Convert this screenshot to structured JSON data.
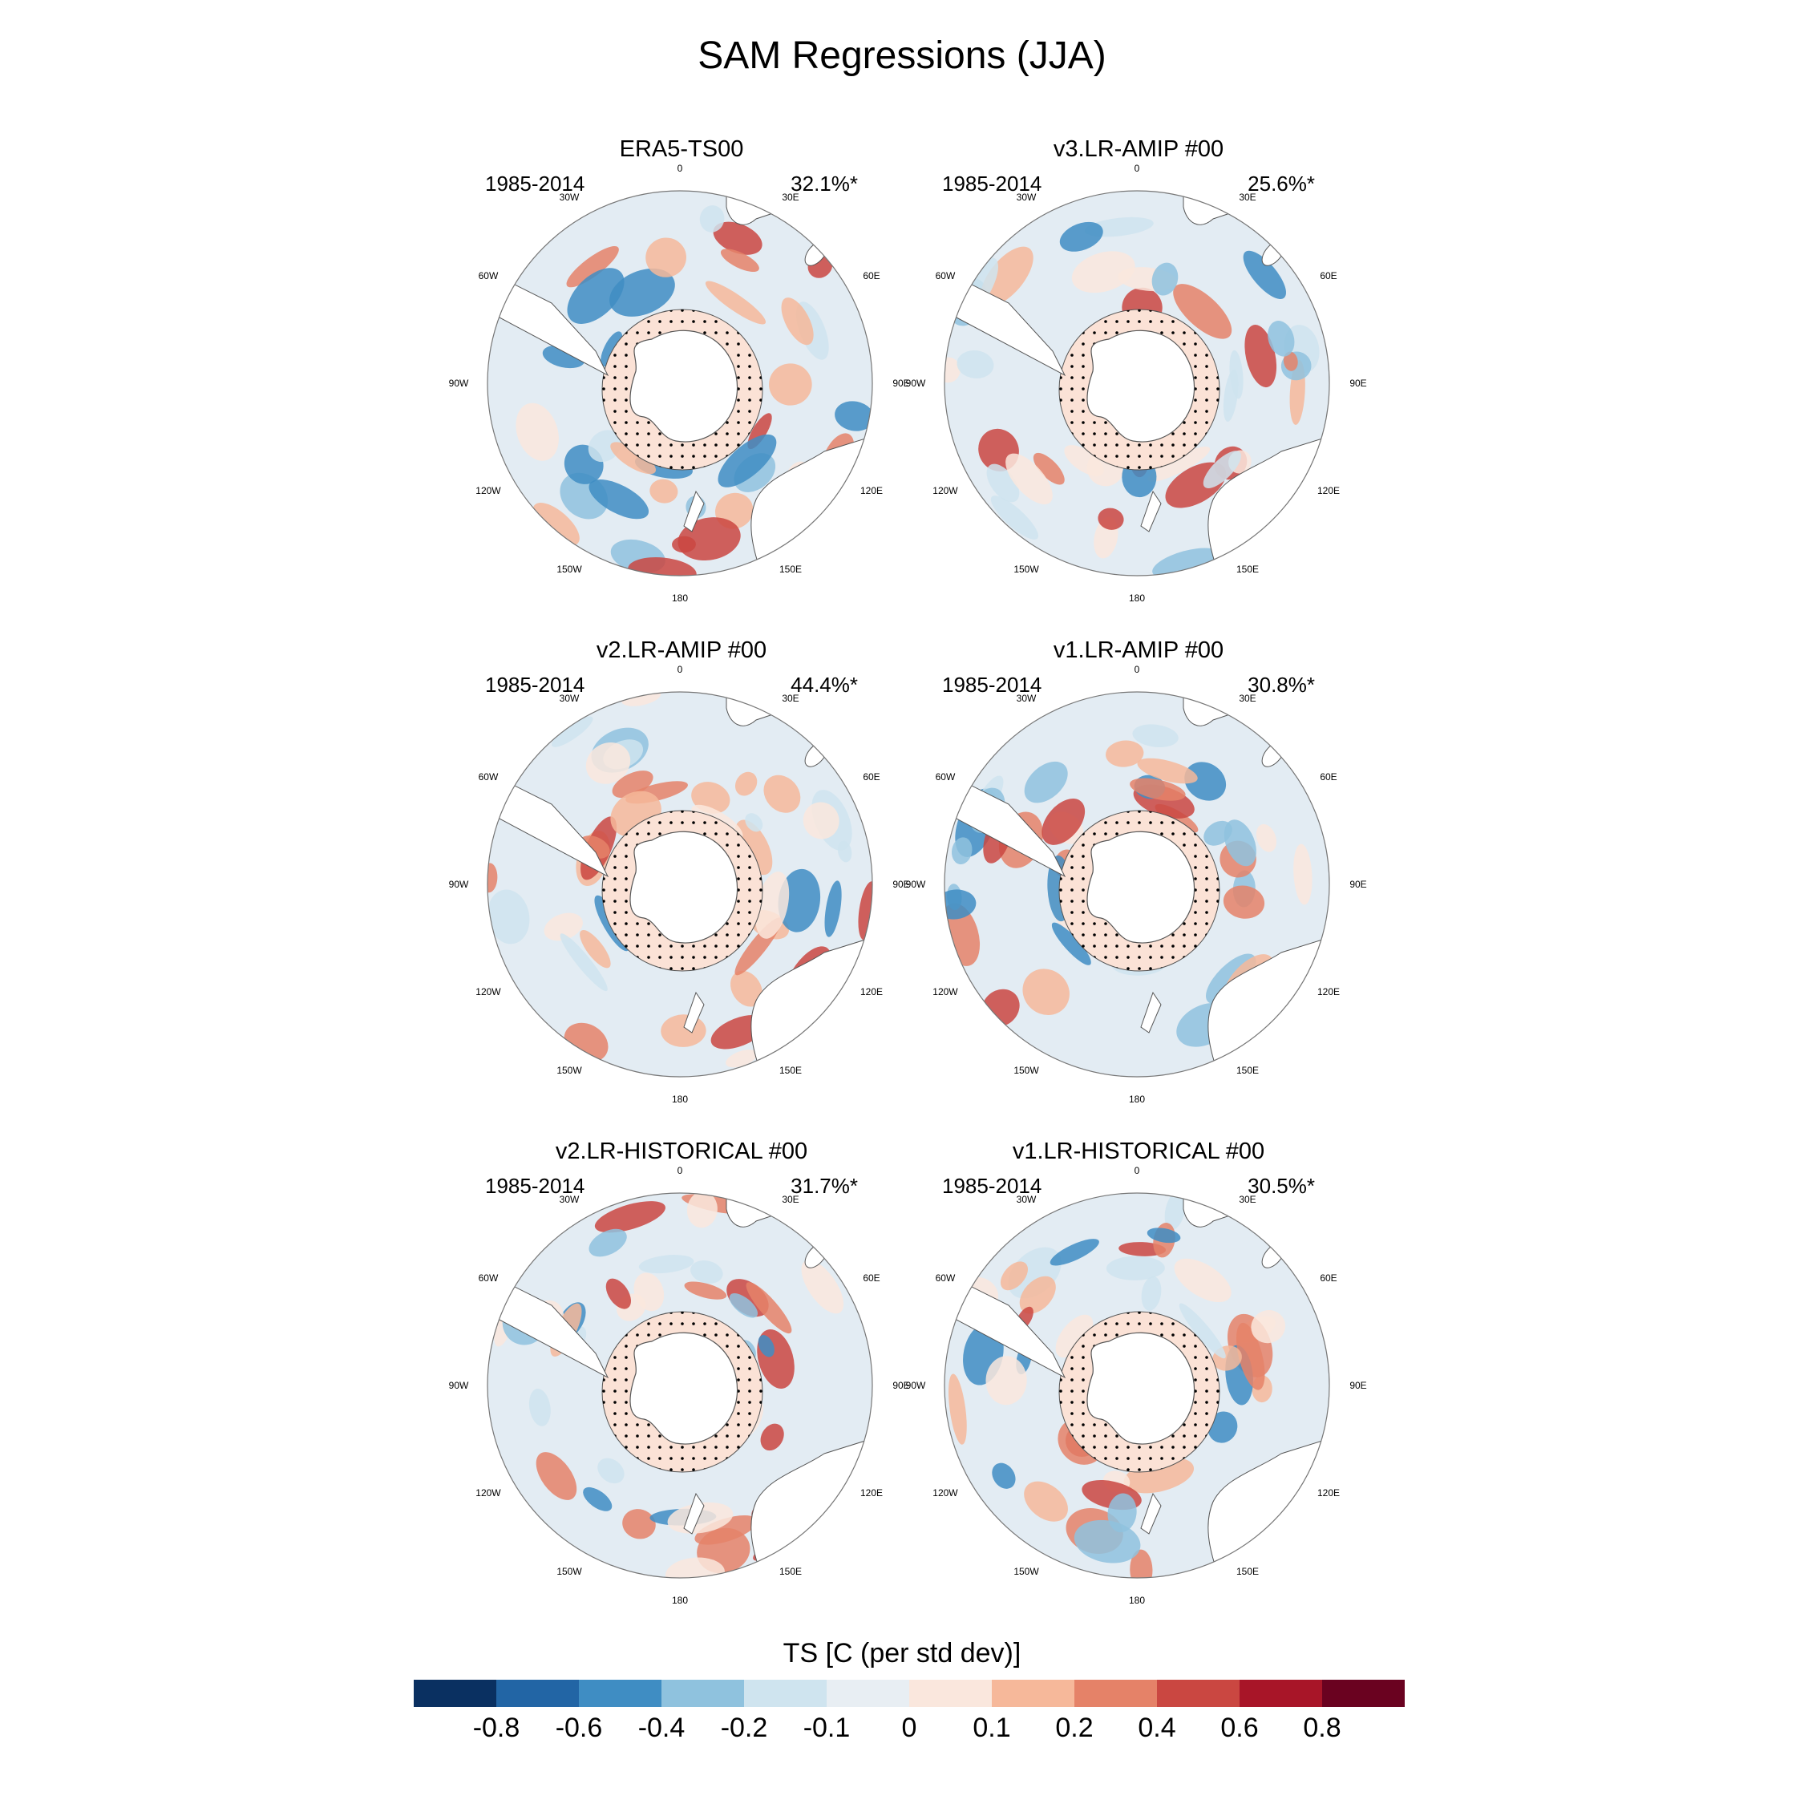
{
  "title": "SAM Regressions (JJA)",
  "colors": {
    "land": "#ffffff",
    "coast": "#555555",
    "border": "#777777",
    "ice_fill": "#fbe2d6",
    "ocean_base": "#e3ecf3"
  },
  "map_labels": [
    "0",
    "30E",
    "60E",
    "90E",
    "120E",
    "150E",
    "180",
    "150W",
    "120W",
    "90W",
    "60W",
    "30W"
  ],
  "panels": [
    {
      "title": "ERA5-TS00",
      "period": "1985-2014",
      "variance": "32.1%*"
    },
    {
      "title": "v3.LR-AMIP  #00",
      "period": "1985-2014",
      "variance": "25.6%*"
    },
    {
      "title": "v2.LR-AMIP  #00",
      "period": "1985-2014",
      "variance": "44.4%*"
    },
    {
      "title": "v1.LR-AMIP  #00",
      "period": "1985-2014",
      "variance": "30.8%*"
    },
    {
      "title": "v2.LR-HISTORICAL  #00",
      "period": "1985-2014",
      "variance": "31.7%*"
    },
    {
      "title": "v1.LR-HISTORICAL  #00",
      "period": "1985-2014",
      "variance": "30.5%*"
    }
  ],
  "colorbar": {
    "title": "TS [C (per std dev)]",
    "ticks": [
      "-0.8",
      "-0.6",
      "-0.4",
      "-0.2",
      "-0.1",
      "0",
      "0.1",
      "0.2",
      "0.4",
      "0.6",
      "0.8"
    ],
    "colors": [
      "#0a3061",
      "#2265a5",
      "#3f8dc3",
      "#8fc2de",
      "#cfe4ef",
      "#e8eef3",
      "#fae7dd",
      "#f6b89a",
      "#e58268",
      "#ca4741",
      "#a81528",
      "#6a0220"
    ]
  }
}
